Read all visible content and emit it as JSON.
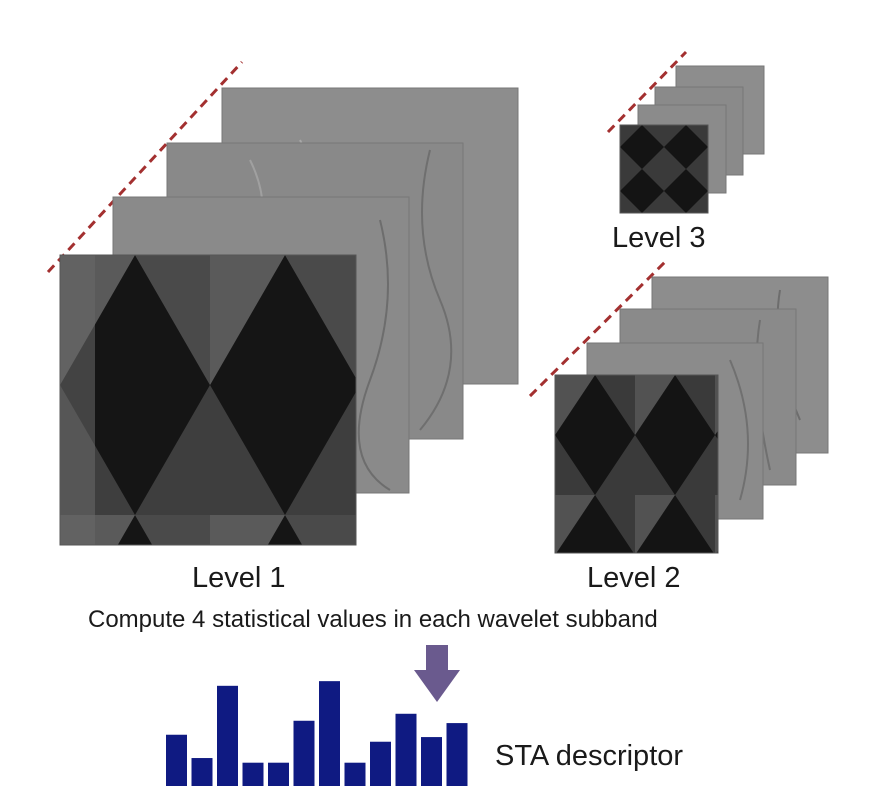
{
  "labels": {
    "level1": "Level 1",
    "level2": "Level 2",
    "level3": "Level 3",
    "caption": "Compute 4 statistical values in each wavelet subband",
    "descriptor": "STA descriptor"
  },
  "colors": {
    "dashed_line": "#a33030",
    "arrow": "#6a5a8e",
    "bars": "#0f1a82",
    "subband_gray": "#8c8c8c",
    "approx_dark": "#2a2a2a"
  },
  "descriptor_bars": [
    22,
    12,
    43,
    10,
    10,
    28,
    45,
    10,
    19,
    31,
    21,
    27
  ]
}
